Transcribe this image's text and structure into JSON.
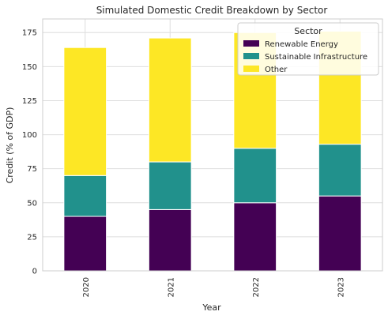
{
  "chart_data": {
    "type": "bar",
    "stacked": true,
    "title": "Simulated Domestic Credit Breakdown by Sector",
    "xlabel": "Year",
    "ylabel": "Credit (% of GDP)",
    "categories": [
      "2020",
      "2021",
      "2022",
      "2023"
    ],
    "series": [
      {
        "name": "Renewable Energy",
        "values": [
          40,
          45,
          50,
          55
        ],
        "color": "#440154"
      },
      {
        "name": "Sustainable Infrastructure",
        "values": [
          30,
          35,
          40,
          38
        ],
        "color": "#21918c"
      },
      {
        "name": "Other",
        "values": [
          94,
          91,
          85,
          83
        ],
        "color": "#fde725"
      }
    ],
    "ylim": [
      0,
      185
    ],
    "yticks": [
      0,
      25,
      50,
      75,
      100,
      125,
      150,
      175
    ],
    "grid": true,
    "legend": {
      "title": "Sector",
      "placement": "top-right"
    }
  }
}
